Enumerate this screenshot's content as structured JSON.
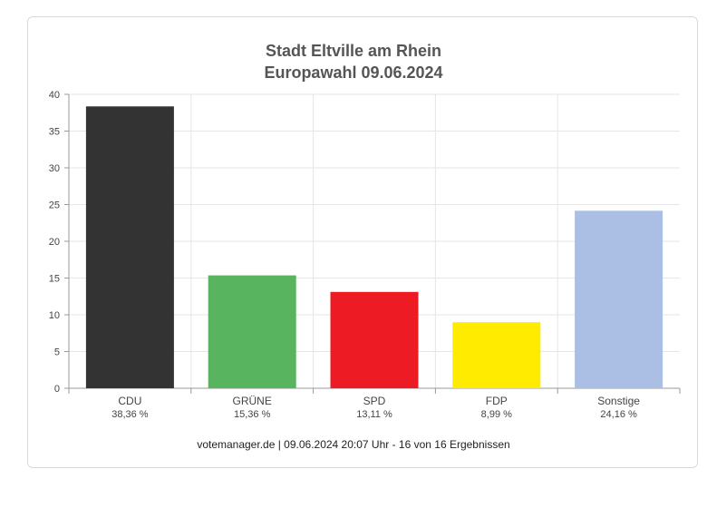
{
  "chart_data": {
    "type": "bar",
    "title": "Stadt Eltville am Rhein",
    "subtitle": "Europawahl 09.06.2024",
    "categories": [
      "CDU",
      "GRÜNE",
      "SPD",
      "FDP",
      "Sonstige"
    ],
    "values": [
      38.36,
      15.36,
      13.11,
      8.99,
      24.16
    ],
    "value_labels": [
      "38,36 %",
      "15,36 %",
      "13,11 %",
      "8,99 %",
      "24,16 %"
    ],
    "colors": [
      "#333333",
      "#58b45f",
      "#ed1c24",
      "#ffeb00",
      "#aabfe3"
    ],
    "ylim": [
      0,
      40
    ],
    "yticks": [
      0,
      5,
      10,
      15,
      20,
      25,
      30,
      35,
      40
    ],
    "grid": true,
    "xlabel": "",
    "ylabel": ""
  },
  "footer": "votemanager.de | 09.06.2024 20:07 Uhr - 16 von 16 Ergebnissen"
}
